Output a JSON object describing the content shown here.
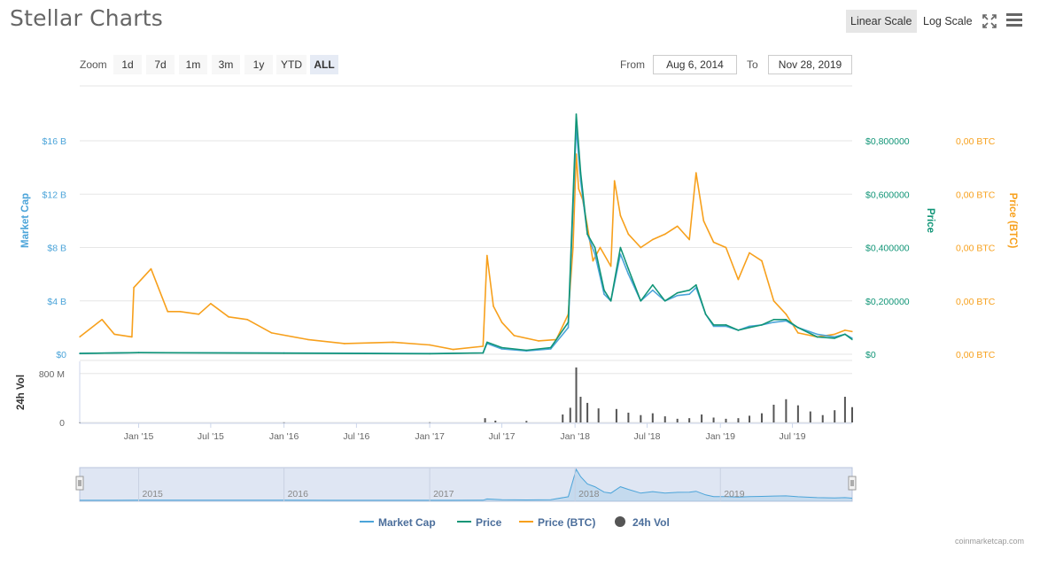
{
  "header": {
    "title": "Stellar Charts",
    "linear_label": "Linear Scale",
    "log_label": "Log Scale",
    "fullscreen_icon": "fullscreen-icon",
    "menu_icon": "menu-icon"
  },
  "zoom": {
    "label": "Zoom",
    "buttons": [
      "1d",
      "7d",
      "1m",
      "3m",
      "1y",
      "YTD",
      "ALL"
    ],
    "active": "ALL"
  },
  "range": {
    "from_label": "From",
    "from_value": "Aug 6, 2014",
    "to_label": "To",
    "to_value": "Nov 28, 2019"
  },
  "credit": "coinmarketcap.com",
  "chart_data": {
    "type": "line",
    "x_range": [
      "2014-08-06",
      "2019-11-28"
    ],
    "x_ticks": [
      {
        "date": "2015-01-01",
        "label": "Jan '15"
      },
      {
        "date": "2015-07-01",
        "label": "Jul '15"
      },
      {
        "date": "2016-01-01",
        "label": "Jan '16"
      },
      {
        "date": "2016-07-01",
        "label": "Jul '16"
      },
      {
        "date": "2017-01-01",
        "label": "Jan '17"
      },
      {
        "date": "2017-07-01",
        "label": "Jul '17"
      },
      {
        "date": "2018-01-01",
        "label": "Jan '18"
      },
      {
        "date": "2018-07-01",
        "label": "Jul '18"
      },
      {
        "date": "2019-01-01",
        "label": "Jan '19"
      },
      {
        "date": "2019-07-01",
        "label": "Jul '19"
      }
    ],
    "axes": {
      "market_cap": {
        "title": "Market Cap",
        "range": [
          0,
          16000000000
        ],
        "ticks": [
          {
            "v": 0,
            "label": "$0"
          },
          {
            "v": 4000000000,
            "label": "$4 B"
          },
          {
            "v": 8000000000,
            "label": "$8 B"
          },
          {
            "v": 12000000000,
            "label": "$12 B"
          },
          {
            "v": 16000000000,
            "label": "$16 B"
          }
        ]
      },
      "price": {
        "title": "Price",
        "range": [
          0,
          0.8
        ],
        "ticks": [
          {
            "v": 0,
            "label": "$0"
          },
          {
            "v": 0.2,
            "label": "$0,200000"
          },
          {
            "v": 0.4,
            "label": "$0,400000"
          },
          {
            "v": 0.6,
            "label": "$0,600000"
          },
          {
            "v": 0.8,
            "label": "$0,800000"
          }
        ]
      },
      "price_btc": {
        "title": "Price (BTC)",
        "range": [
          0,
          8e-05
        ],
        "ticks": [
          {
            "v": 0,
            "label": "0,00 BTC"
          },
          {
            "v": 2e-05,
            "label": "0,00 BTC"
          },
          {
            "v": 4e-05,
            "label": "0,00 BTC"
          },
          {
            "v": 6e-05,
            "label": "0,00 BTC"
          },
          {
            "v": 8e-05,
            "label": "0,00 BTC"
          }
        ]
      },
      "volume": {
        "title": "24h Vol",
        "range": [
          0,
          1000000000
        ],
        "ticks": [
          {
            "v": 0,
            "label": "0"
          },
          {
            "v": 800000000,
            "label": "800 M"
          }
        ]
      }
    },
    "series": [
      {
        "name": "Market Cap",
        "color": "#4ba4d9",
        "axis": "market_cap",
        "points": [
          [
            "2014-08-06",
            60000000
          ],
          [
            "2015-01-01",
            120000000
          ],
          [
            "2016-01-01",
            100000000
          ],
          [
            "2017-01-01",
            50000000
          ],
          [
            "2017-05-15",
            100000000
          ],
          [
            "2017-05-25",
            800000000
          ],
          [
            "2017-07-01",
            400000000
          ],
          [
            "2017-09-01",
            250000000
          ],
          [
            "2017-11-01",
            400000000
          ],
          [
            "2017-12-15",
            2000000000
          ],
          [
            "2018-01-04",
            17000000000
          ],
          [
            "2018-01-15",
            13000000000
          ],
          [
            "2018-02-01",
            9000000000
          ],
          [
            "2018-02-20",
            7500000000
          ],
          [
            "2018-03-15",
            4500000000
          ],
          [
            "2018-04-01",
            4000000000
          ],
          [
            "2018-04-25",
            7500000000
          ],
          [
            "2018-05-15",
            6000000000
          ],
          [
            "2018-06-15",
            4000000000
          ],
          [
            "2018-07-15",
            4800000000
          ],
          [
            "2018-08-15",
            4000000000
          ],
          [
            "2018-09-15",
            4400000000
          ],
          [
            "2018-10-15",
            4500000000
          ],
          [
            "2018-11-01",
            5000000000
          ],
          [
            "2018-11-25",
            3000000000
          ],
          [
            "2018-12-15",
            2100000000
          ],
          [
            "2019-01-15",
            2100000000
          ],
          [
            "2019-02-15",
            1800000000
          ],
          [
            "2019-03-15",
            2100000000
          ],
          [
            "2019-04-15",
            2200000000
          ],
          [
            "2019-05-15",
            2400000000
          ],
          [
            "2019-06-15",
            2500000000
          ],
          [
            "2019-07-15",
            2000000000
          ],
          [
            "2019-09-01",
            1500000000
          ],
          [
            "2019-10-15",
            1300000000
          ],
          [
            "2019-11-10",
            1500000000
          ],
          [
            "2019-11-28",
            1200000000
          ]
        ]
      },
      {
        "name": "Price",
        "color": "#119577",
        "axis": "price",
        "points": [
          [
            "2014-08-06",
            0.003
          ],
          [
            "2015-01-01",
            0.006
          ],
          [
            "2016-01-01",
            0.004
          ],
          [
            "2017-01-01",
            0.002
          ],
          [
            "2017-05-15",
            0.005
          ],
          [
            "2017-05-25",
            0.045
          ],
          [
            "2017-07-01",
            0.025
          ],
          [
            "2017-09-01",
            0.015
          ],
          [
            "2017-11-01",
            0.025
          ],
          [
            "2017-12-15",
            0.12
          ],
          [
            "2018-01-04",
            0.9
          ],
          [
            "2018-01-15",
            0.68
          ],
          [
            "2018-02-01",
            0.45
          ],
          [
            "2018-02-20",
            0.4
          ],
          [
            "2018-03-15",
            0.24
          ],
          [
            "2018-04-01",
            0.2
          ],
          [
            "2018-04-25",
            0.4
          ],
          [
            "2018-05-15",
            0.32
          ],
          [
            "2018-06-15",
            0.2
          ],
          [
            "2018-07-15",
            0.26
          ],
          [
            "2018-08-15",
            0.2
          ],
          [
            "2018-09-15",
            0.23
          ],
          [
            "2018-10-15",
            0.24
          ],
          [
            "2018-11-01",
            0.26
          ],
          [
            "2018-11-25",
            0.15
          ],
          [
            "2018-12-15",
            0.11
          ],
          [
            "2019-01-15",
            0.11
          ],
          [
            "2019-02-15",
            0.09
          ],
          [
            "2019-03-15",
            0.1
          ],
          [
            "2019-04-15",
            0.11
          ],
          [
            "2019-05-15",
            0.13
          ],
          [
            "2019-06-15",
            0.13
          ],
          [
            "2019-07-15",
            0.1
          ],
          [
            "2019-09-01",
            0.065
          ],
          [
            "2019-10-15",
            0.06
          ],
          [
            "2019-11-10",
            0.075
          ],
          [
            "2019-11-28",
            0.055
          ]
        ]
      },
      {
        "name": "Price (BTC)",
        "color": "#f7a01c",
        "axis": "price_btc",
        "points": [
          [
            "2014-08-06",
            6.5e-06
          ],
          [
            "2014-10-01",
            1.3e-05
          ],
          [
            "2014-11-01",
            7.5e-06
          ],
          [
            "2014-12-15",
            6.5e-06
          ],
          [
            "2014-12-20",
            2.5e-05
          ],
          [
            "2015-02-01",
            3.2e-05
          ],
          [
            "2015-03-15",
            1.6e-05
          ],
          [
            "2015-04-15",
            1.6e-05
          ],
          [
            "2015-06-01",
            1.5e-05
          ],
          [
            "2015-07-01",
            1.9e-05
          ],
          [
            "2015-08-15",
            1.4e-05
          ],
          [
            "2015-10-01",
            1.3e-05
          ],
          [
            "2015-12-01",
            8e-06
          ],
          [
            "2016-03-01",
            5.5e-06
          ],
          [
            "2016-06-01",
            4e-06
          ],
          [
            "2016-10-01",
            4.5e-06
          ],
          [
            "2017-01-01",
            3.5e-06
          ],
          [
            "2017-03-01",
            1.8e-06
          ],
          [
            "2017-05-15",
            3e-06
          ],
          [
            "2017-05-25",
            3.7e-05
          ],
          [
            "2017-06-10",
            1.8e-05
          ],
          [
            "2017-07-01",
            1.2e-05
          ],
          [
            "2017-08-01",
            7e-06
          ],
          [
            "2017-10-01",
            5e-06
          ],
          [
            "2017-11-15",
            5.5e-06
          ],
          [
            "2017-12-15",
            1.5e-05
          ],
          [
            "2017-12-27",
            4e-05
          ],
          [
            "2018-01-04",
            7.5e-05
          ],
          [
            "2018-01-10",
            6.2e-05
          ],
          [
            "2018-01-20",
            5.8e-05
          ],
          [
            "2018-02-01",
            4.8e-05
          ],
          [
            "2018-02-15",
            3.5e-05
          ],
          [
            "2018-03-05",
            4e-05
          ],
          [
            "2018-04-01",
            3.3e-05
          ],
          [
            "2018-04-10",
            6.5e-05
          ],
          [
            "2018-04-25",
            5.2e-05
          ],
          [
            "2018-05-15",
            4.5e-05
          ],
          [
            "2018-06-15",
            4e-05
          ],
          [
            "2018-07-15",
            4.3e-05
          ],
          [
            "2018-08-15",
            4.5e-05
          ],
          [
            "2018-09-15",
            4.8e-05
          ],
          [
            "2018-10-15",
            4.3e-05
          ],
          [
            "2018-11-01",
            6.8e-05
          ],
          [
            "2018-11-20",
            5e-05
          ],
          [
            "2018-12-15",
            4.2e-05
          ],
          [
            "2019-01-15",
            4e-05
          ],
          [
            "2019-02-15",
            2.8e-05
          ],
          [
            "2019-03-15",
            3.8e-05
          ],
          [
            "2019-04-15",
            3.5e-05
          ],
          [
            "2019-05-15",
            2e-05
          ],
          [
            "2019-06-15",
            1.5e-05
          ],
          [
            "2019-07-15",
            8e-06
          ],
          [
            "2019-09-01",
            6.5e-06
          ],
          [
            "2019-10-15",
            7.5e-06
          ],
          [
            "2019-11-10",
            9e-06
          ],
          [
            "2019-11-28",
            8.5e-06
          ]
        ]
      },
      {
        "name": "24h Vol",
        "color": "#555555",
        "axis": "volume",
        "type": "column",
        "points": [
          [
            "2014-08-06",
            1000000
          ],
          [
            "2016-01-01",
            2000000
          ],
          [
            "2017-01-01",
            3000000
          ],
          [
            "2017-05-20",
            70000000
          ],
          [
            "2017-06-15",
            30000000
          ],
          [
            "2017-09-01",
            25000000
          ],
          [
            "2017-12-01",
            130000000
          ],
          [
            "2017-12-20",
            240000000
          ],
          [
            "2018-01-04",
            900000000
          ],
          [
            "2018-01-15",
            420000000
          ],
          [
            "2018-02-01",
            320000000
          ],
          [
            "2018-03-01",
            230000000
          ],
          [
            "2018-04-15",
            220000000
          ],
          [
            "2018-05-15",
            160000000
          ],
          [
            "2018-06-15",
            120000000
          ],
          [
            "2018-07-15",
            150000000
          ],
          [
            "2018-08-15",
            100000000
          ],
          [
            "2018-09-15",
            60000000
          ],
          [
            "2018-10-15",
            70000000
          ],
          [
            "2018-11-15",
            130000000
          ],
          [
            "2018-12-15",
            80000000
          ],
          [
            "2019-01-15",
            60000000
          ],
          [
            "2019-02-15",
            70000000
          ],
          [
            "2019-03-15",
            110000000
          ],
          [
            "2019-04-15",
            150000000
          ],
          [
            "2019-05-15",
            290000000
          ],
          [
            "2019-06-15",
            380000000
          ],
          [
            "2019-07-15",
            280000000
          ],
          [
            "2019-08-15",
            180000000
          ],
          [
            "2019-09-15",
            120000000
          ],
          [
            "2019-10-15",
            200000000
          ],
          [
            "2019-11-10",
            420000000
          ],
          [
            "2019-11-28",
            250000000
          ]
        ]
      }
    ],
    "navigator": {
      "year_labels": [
        {
          "date": "2015-01-01",
          "label": "2015"
        },
        {
          "date": "2016-01-01",
          "label": "2016"
        },
        {
          "date": "2017-01-01",
          "label": "2017"
        },
        {
          "date": "2018-01-01",
          "label": "2018"
        },
        {
          "date": "2019-01-01",
          "label": "2019"
        }
      ]
    },
    "legend": {
      "placement": "bottom-center"
    }
  }
}
